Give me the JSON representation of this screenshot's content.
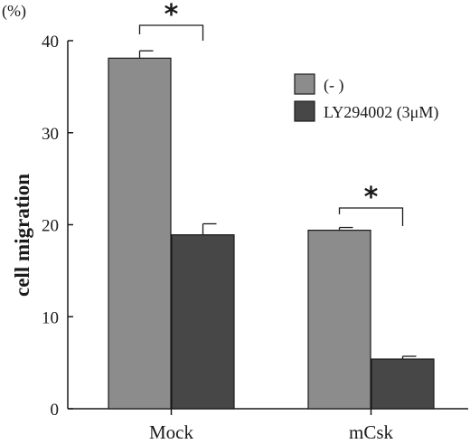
{
  "chart_data": {
    "type": "bar",
    "title": "",
    "xlabel": "",
    "ylabel": "cell migration",
    "y_unit": "(%)",
    "ylim": [
      0,
      40
    ],
    "yticks": [
      0,
      10,
      20,
      30,
      40
    ],
    "categories": [
      "Mock",
      "mCsk"
    ],
    "series": [
      {
        "name": "(- )",
        "color": "#8c8c8c",
        "values": [
          38.1,
          19.4
        ],
        "errors": [
          0.8,
          0.3
        ]
      },
      {
        "name": "LY294002 (3μM)",
        "color": "#474747",
        "values": [
          18.9,
          5.4
        ],
        "errors": [
          1.2,
          0.3
        ]
      }
    ],
    "legend_position": "upper-right",
    "grid": false,
    "significance": [
      {
        "category": "Mock",
        "symbol": "*"
      },
      {
        "category": "mCsk",
        "symbol": "*"
      }
    ]
  }
}
